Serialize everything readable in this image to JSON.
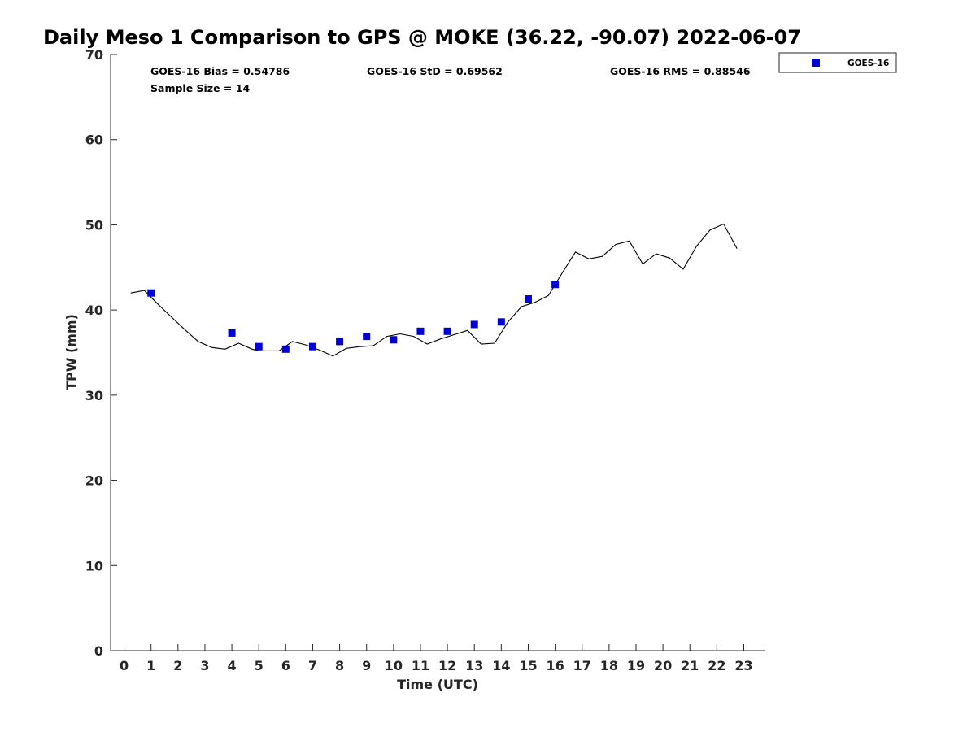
{
  "chart_data": {
    "type": "scatter",
    "title": "Daily Meso 1 Comparison to GPS @ MOKE (36.22, -90.07) 2022-06-07",
    "xlabel": "Time (UTC)",
    "ylabel": "TPW (mm)",
    "xlim": [
      -0.5,
      23.8
    ],
    "ylim": [
      0,
      70
    ],
    "x_ticks": [
      "0",
      "1",
      "2",
      "3",
      "4",
      "5",
      "6",
      "7",
      "8",
      "9",
      "10",
      "11",
      "12",
      "13",
      "14",
      "15",
      "16",
      "17",
      "18",
      "19",
      "20",
      "21",
      "22",
      "23"
    ],
    "y_ticks": [
      "0",
      "10",
      "20",
      "30",
      "40",
      "50",
      "60",
      "70"
    ],
    "grid": false,
    "legend_position": "outside-top-right",
    "stats": {
      "bias": "GOES-16 Bias = 0.54786",
      "std": "GOES-16 StD = 0.69562",
      "rms": "GOES-16 RMS = 0.88546",
      "sample_size": "Sample Size = 14"
    },
    "series": [
      {
        "name": "GOES-16",
        "kind": "markers",
        "marker": "square",
        "color": "#0000d6",
        "x": [
          1,
          4,
          5,
          6,
          7,
          8,
          9,
          10,
          11,
          12,
          13,
          14,
          15,
          16
        ],
        "y": [
          42.0,
          37.3,
          35.7,
          35.4,
          35.7,
          36.3,
          36.9,
          36.5,
          37.5,
          37.5,
          38.3,
          38.6,
          41.3,
          43.0
        ]
      },
      {
        "kind": "line",
        "color": "#000000",
        "x": [
          0.25,
          0.75,
          1.25,
          1.75,
          2.25,
          2.75,
          3.25,
          3.75,
          4.25,
          4.75,
          5.0,
          5.25,
          5.75,
          6.25,
          6.75,
          7.25,
          7.75,
          8.25,
          8.75,
          9.25,
          9.75,
          10.25,
          10.75,
          11.25,
          11.75,
          12.25,
          12.75,
          13.25,
          13.75,
          14.25,
          14.75,
          15.25,
          15.75,
          16.25,
          16.75,
          17.25,
          17.75,
          18.25,
          18.75,
          19.25,
          19.75,
          20.25,
          20.75,
          21.25,
          21.75,
          22.25,
          22.75
        ],
        "y": [
          42.0,
          42.3,
          40.7,
          39.2,
          37.7,
          36.3,
          35.6,
          35.4,
          36.1,
          35.4,
          35.2,
          35.2,
          35.2,
          36.3,
          35.9,
          35.3,
          34.6,
          35.5,
          35.7,
          35.8,
          36.9,
          37.2,
          36.9,
          36.0,
          36.6,
          37.1,
          37.6,
          36.0,
          36.1,
          38.6,
          40.4,
          40.9,
          41.7,
          44.3,
          46.8,
          46.0,
          46.3,
          47.7,
          48.1,
          45.4,
          46.6,
          46.1,
          44.8,
          47.5,
          49.4,
          50.1,
          47.2
        ]
      }
    ]
  }
}
